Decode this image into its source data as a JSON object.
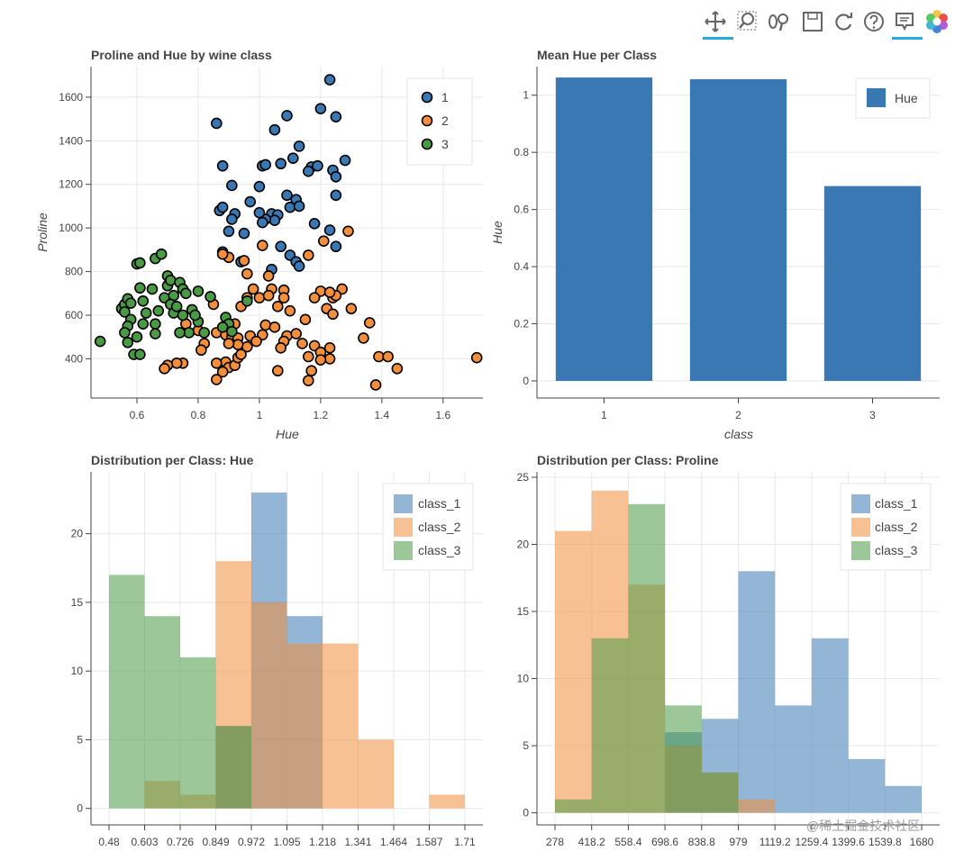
{
  "toolbar": {
    "tools": [
      "pan-icon",
      "box-zoom-icon",
      "wheel-zoom-icon",
      "save-icon",
      "reset-icon",
      "help-icon",
      "hover-icon",
      "bokeh-logo-icon"
    ]
  },
  "colors": {
    "class_1": "#3a78b4",
    "class_2": "#f28e3c",
    "class_3": "#4a9a45",
    "bar": "#3a78b4",
    "grid": "#e8e8e8",
    "axis": "#444444"
  },
  "watermark": "@稀土掘金技术社区",
  "chart_data": [
    {
      "type": "scatter",
      "title": "Proline and Hue by wine class",
      "xlabel": "Hue",
      "ylabel": "Proline",
      "xlim": [
        0.45,
        1.73
      ],
      "ylim": [
        220,
        1740
      ],
      "xticks": [
        0.6,
        0.8,
        1,
        1.2,
        1.4,
        1.6
      ],
      "yticks": [
        400,
        600,
        800,
        1000,
        1200,
        1400,
        1600
      ],
      "xtick_labels": [
        "0.6",
        "0.8",
        "1",
        "1.2",
        "1.4",
        "1.6"
      ],
      "ytick_labels": [
        "400",
        "600",
        "800",
        "1000",
        "1200",
        "1400",
        "1600"
      ],
      "legend": {
        "position": "top-right",
        "entries": [
          "1",
          "2",
          "3"
        ]
      },
      "series": [
        {
          "name": "1",
          "points": [
            [
              1.23,
              1680
            ],
            [
              0.86,
              1480
            ],
            [
              1.09,
              1515
            ],
            [
              1.2,
              1547
            ],
            [
              1.25,
              1510
            ],
            [
              1.05,
              1450
            ],
            [
              1.13,
              1375
            ],
            [
              1.11,
              1320
            ],
            [
              1.07,
              1295
            ],
            [
              1.01,
              1285
            ],
            [
              1.02,
              1290
            ],
            [
              0.88,
              1285
            ],
            [
              1.17,
              1280
            ],
            [
              1.19,
              1285
            ],
            [
              1.24,
              1265
            ],
            [
              1.28,
              1310
            ],
            [
              1.25,
              1235
            ],
            [
              1.16,
              1260
            ],
            [
              0.91,
              1195
            ],
            [
              1.0,
              1190
            ],
            [
              0.97,
              1120
            ],
            [
              1.09,
              1150
            ],
            [
              1.12,
              1130
            ],
            [
              1.25,
              1150
            ],
            [
              1.04,
              1065
            ],
            [
              1.06,
              1060
            ],
            [
              1.1,
              1095
            ],
            [
              1.13,
              1100
            ],
            [
              1.05,
              1035
            ],
            [
              1.02,
              1040
            ],
            [
              0.87,
              1080
            ],
            [
              0.88,
              1095
            ],
            [
              0.92,
              1065
            ],
            [
              0.91,
              1040
            ],
            [
              1.18,
              1020
            ],
            [
              0.9,
              985
            ],
            [
              0.95,
              975
            ],
            [
              0.88,
              890
            ],
            [
              1.07,
              915
            ],
            [
              1.23,
              990
            ],
            [
              1.25,
              915
            ],
            [
              1.1,
              875
            ],
            [
              1.04,
              810
            ],
            [
              0.94,
              845
            ],
            [
              1.12,
              845
            ],
            [
              1.13,
              825
            ],
            [
              1.0,
              1070
            ],
            [
              1.01,
              1025
            ]
          ]
        },
        {
          "name": "2",
          "points": [
            [
              1.29,
              985
            ],
            [
              1.21,
              940
            ],
            [
              1.01,
              920
            ],
            [
              1.16,
              875
            ],
            [
              0.9,
              865
            ],
            [
              0.95,
              850
            ],
            [
              0.88,
              880
            ],
            [
              0.96,
              790
            ],
            [
              1.03,
              780
            ],
            [
              0.98,
              720
            ],
            [
              1.04,
              720
            ],
            [
              1.08,
              715
            ],
            [
              1.2,
              710
            ],
            [
              1.27,
              720
            ],
            [
              1.24,
              680
            ],
            [
              1.18,
              680
            ],
            [
              1.22,
              630
            ],
            [
              1.24,
              605
            ],
            [
              1.3,
              630
            ],
            [
              1.25,
              690
            ],
            [
              1.23,
              705
            ],
            [
              0.96,
              680
            ],
            [
              1.0,
              680
            ],
            [
              1.03,
              690
            ],
            [
              1.08,
              680
            ],
            [
              0.85,
              650
            ],
            [
              0.94,
              640
            ],
            [
              1.06,
              640
            ],
            [
              1.1,
              620
            ],
            [
              1.15,
              580
            ],
            [
              1.36,
              565
            ],
            [
              0.92,
              560
            ],
            [
              1.02,
              555
            ],
            [
              1.05,
              545
            ],
            [
              0.76,
              560
            ],
            [
              0.8,
              530
            ],
            [
              0.86,
              520
            ],
            [
              0.89,
              510
            ],
            [
              0.91,
              500
            ],
            [
              0.93,
              495
            ],
            [
              0.97,
              505
            ],
            [
              1.01,
              510
            ],
            [
              1.09,
              505
            ],
            [
              1.12,
              515
            ],
            [
              1.14,
              470
            ],
            [
              1.08,
              480
            ],
            [
              0.99,
              480
            ],
            [
              0.96,
              455
            ],
            [
              0.93,
              465
            ],
            [
              0.9,
              470
            ],
            [
              0.82,
              470
            ],
            [
              1.18,
              460
            ],
            [
              1.23,
              450
            ],
            [
              1.34,
              495
            ],
            [
              1.07,
              450
            ],
            [
              1.2,
              430
            ],
            [
              1.16,
              410
            ],
            [
              1.23,
              400
            ],
            [
              1.39,
              410
            ],
            [
              1.42,
              410
            ],
            [
              1.45,
              355
            ],
            [
              0.89,
              385
            ],
            [
              0.9,
              360
            ],
            [
              0.92,
              370
            ],
            [
              0.93,
              405
            ],
            [
              0.94,
              420
            ],
            [
              0.86,
              380
            ],
            [
              0.88,
              340
            ],
            [
              0.86,
              305
            ],
            [
              0.75,
              380
            ],
            [
              0.73,
              380
            ],
            [
              0.7,
              370
            ],
            [
              0.69,
              355
            ],
            [
              0.81,
              440
            ],
            [
              1.06,
              345
            ],
            [
              1.17,
              345
            ],
            [
              1.16,
              300
            ],
            [
              1.2,
              395
            ],
            [
              1.38,
              280
            ],
            [
              1.71,
              405
            ]
          ]
        },
        {
          "name": "3",
          "points": [
            [
              0.48,
              480
            ],
            [
              0.55,
              630
            ],
            [
              0.56,
              650
            ],
            [
              0.57,
              675
            ],
            [
              0.56,
              615
            ],
            [
              0.58,
              655
            ],
            [
              0.58,
              580
            ],
            [
              0.57,
              550
            ],
            [
              0.56,
              520
            ],
            [
              0.57,
              475
            ],
            [
              0.59,
              420
            ],
            [
              0.61,
              420
            ],
            [
              0.6,
              500
            ],
            [
              0.62,
              560
            ],
            [
              0.63,
              610
            ],
            [
              0.62,
              665
            ],
            [
              0.61,
              725
            ],
            [
              0.65,
              720
            ],
            [
              0.6,
              835
            ],
            [
              0.61,
              840
            ],
            [
              0.66,
              860
            ],
            [
              0.68,
              880
            ],
            [
              0.66,
              560
            ],
            [
              0.66,
              515
            ],
            [
              0.67,
              620
            ],
            [
              0.69,
              680
            ],
            [
              0.7,
              735
            ],
            [
              0.7,
              780
            ],
            [
              0.71,
              760
            ],
            [
              0.72,
              690
            ],
            [
              0.71,
              650
            ],
            [
              0.72,
              610
            ],
            [
              0.73,
              640
            ],
            [
              0.74,
              750
            ],
            [
              0.75,
              720
            ],
            [
              0.76,
              700
            ],
            [
              0.75,
              600
            ],
            [
              0.78,
              625
            ],
            [
              0.8,
              570
            ],
            [
              0.82,
              520
            ],
            [
              0.77,
              520
            ],
            [
              0.74,
              520
            ],
            [
              0.79,
              600
            ],
            [
              0.89,
              590
            ],
            [
              0.9,
              560
            ],
            [
              0.88,
              545
            ],
            [
              0.84,
              685
            ],
            [
              0.91,
              525
            ],
            [
              0.8,
              710
            ],
            [
              0.96,
              665
            ]
          ]
        }
      ]
    },
    {
      "type": "bar",
      "title": "Mean Hue per Class",
      "xlabel": "class",
      "ylabel": "Hue",
      "categories": [
        "1",
        "2",
        "3"
      ],
      "values": [
        1.062,
        1.056,
        0.682
      ],
      "ylim": [
        -0.06,
        1.1
      ],
      "yticks": [
        0,
        0.2,
        0.4,
        0.6,
        0.8,
        1
      ],
      "ytick_labels": [
        "0",
        "0.2",
        "0.4",
        "0.6",
        "0.8",
        "1"
      ],
      "legend": {
        "position": "top-right",
        "entries": [
          "Hue"
        ]
      }
    },
    {
      "type": "histogram",
      "title": "Distribution per Class: Hue",
      "bin_edges": [
        0.48,
        0.603,
        0.726,
        0.849,
        0.972,
        1.095,
        1.218,
        1.341,
        1.464,
        1.587,
        1.71
      ],
      "xtick_labels": [
        "0.48",
        "0.603",
        "0.726",
        "0.849",
        "0.972",
        "1.095",
        "1.218",
        "1.341",
        "1.464",
        "1.587",
        "1.71"
      ],
      "ylim": [
        -1.2,
        24.5
      ],
      "yticks": [
        0,
        5,
        10,
        15,
        20
      ],
      "ytick_labels": [
        "0",
        "5",
        "10",
        "15",
        "20"
      ],
      "legend": {
        "position": "top-right",
        "entries": [
          "class_1",
          "class_2",
          "class_3"
        ]
      },
      "series": [
        {
          "name": "class_1",
          "counts": [
            0,
            0,
            0,
            6,
            23,
            14,
            0,
            0,
            0,
            0
          ]
        },
        {
          "name": "class_2",
          "counts": [
            0,
            2,
            1,
            18,
            15,
            12,
            12,
            5,
            0,
            1
          ]
        },
        {
          "name": "class_3",
          "counts": [
            17,
            14,
            11,
            6,
            0,
            0,
            0,
            0,
            0,
            0
          ]
        }
      ]
    },
    {
      "type": "histogram",
      "title": "Distribution per Class: Proline",
      "bin_edges": [
        278,
        418.2,
        558.4,
        698.6,
        838.8,
        979,
        1119.2,
        1259.4,
        1399.6,
        1539.8,
        1680
      ],
      "xtick_labels": [
        "278",
        "418.2",
        "558.4",
        "698.6",
        "838.8",
        "979",
        "1119.2",
        "1259.4",
        "1399.6",
        "1539.8",
        "1680"
      ],
      "ylim": [
        -0.9,
        25.4
      ],
      "yticks": [
        0,
        5,
        10,
        15,
        20,
        25
      ],
      "ytick_labels": [
        "0",
        "5",
        "10",
        "15",
        "20",
        "25"
      ],
      "legend": {
        "position": "top-right",
        "entries": [
          "class_1",
          "class_2",
          "class_3"
        ]
      },
      "series": [
        {
          "name": "class_1",
          "counts": [
            0,
            0,
            0,
            6,
            7,
            18,
            8,
            13,
            4,
            2
          ]
        },
        {
          "name": "class_2",
          "counts": [
            21,
            24,
            17,
            5,
            3,
            1,
            0,
            0,
            0,
            0
          ]
        },
        {
          "name": "class_3",
          "counts": [
            1,
            13,
            23,
            8,
            3,
            0,
            0,
            0,
            0,
            0
          ]
        }
      ]
    }
  ]
}
